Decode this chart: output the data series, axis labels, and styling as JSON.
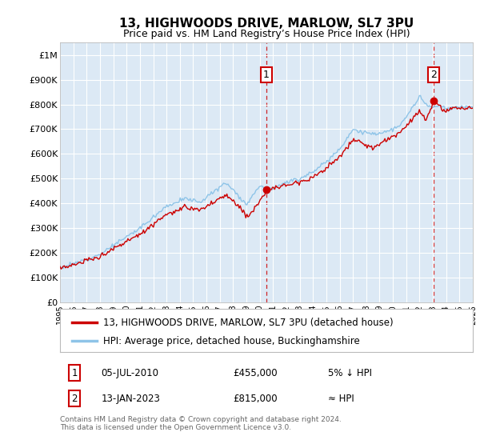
{
  "title": "13, HIGHWOODS DRIVE, MARLOW, SL7 3PU",
  "subtitle": "Price paid vs. HM Land Registry’s House Price Index (HPI)",
  "ylabel_ticks": [
    "£0",
    "£100K",
    "£200K",
    "£300K",
    "£400K",
    "£500K",
    "£600K",
    "£700K",
    "£800K",
    "£900K",
    "£1M"
  ],
  "ytick_values": [
    0,
    100000,
    200000,
    300000,
    400000,
    500000,
    600000,
    700000,
    800000,
    900000,
    1000000
  ],
  "ylim": [
    0,
    1050000
  ],
  "xlim": [
    1995,
    2026
  ],
  "xtick_years": [
    1995,
    1996,
    1997,
    1998,
    1999,
    2000,
    2001,
    2002,
    2003,
    2004,
    2005,
    2006,
    2007,
    2008,
    2009,
    2010,
    2011,
    2012,
    2013,
    2014,
    2015,
    2016,
    2017,
    2018,
    2019,
    2020,
    2021,
    2022,
    2023,
    2024,
    2025,
    2026
  ],
  "hpi_color": "#8ec4e8",
  "price_color": "#cc0000",
  "sale1_x": 2010.5,
  "sale1_y": 455000,
  "sale2_x": 2023.04,
  "sale2_y": 815000,
  "legend_label_price": "13, HIGHWOODS DRIVE, MARLOW, SL7 3PU (detached house)",
  "legend_label_hpi": "HPI: Average price, detached house, Buckinghamshire",
  "table_row1": [
    "1",
    "05-JUL-2010",
    "£455,000",
    "5% ↓ HPI"
  ],
  "table_row2": [
    "2",
    "13-JAN-2023",
    "£815,000",
    "≈ HPI"
  ],
  "footer": "Contains HM Land Registry data © Crown copyright and database right 2024.\nThis data is licensed under the Open Government Licence v3.0.",
  "bg_color": "#dce9f5",
  "grid_color": "#ffffff",
  "border_color": "#bbbbbb",
  "title_fontsize": 11,
  "subtitle_fontsize": 9,
  "tick_fontsize": 8,
  "xtick_fontsize": 7
}
